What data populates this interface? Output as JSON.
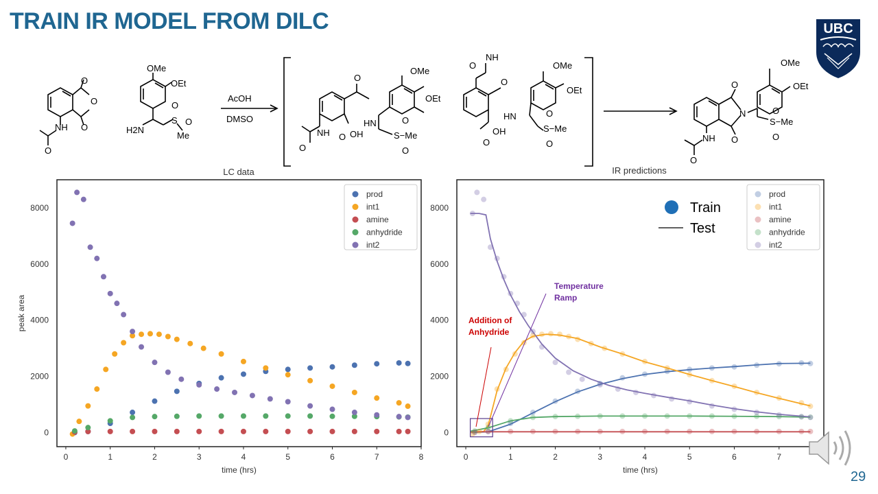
{
  "slide": {
    "title": "TRAIN IR MODEL FROM DILC",
    "page_number": "29",
    "logo_text": "UBC"
  },
  "scheme": {
    "reagents_top": "AcOH",
    "reagents_bottom": "DMSO",
    "labels": {
      "ome": "OMe",
      "oet": "OEt",
      "nh": "NH",
      "h2n": "H2N",
      "hn": "HN",
      "n": "N",
      "me": "Me",
      "s": "S",
      "o": "O",
      "s_me": "S−Me",
      "cooh": "OH"
    }
  },
  "colors": {
    "prod": "#4c72b0",
    "int1": "#f5a623",
    "amine": "#c44e52",
    "anhydride": "#55a868",
    "int2": "#8172b2",
    "title": "#1f6691",
    "annot_red": "#cc0000",
    "annot_purple": "#7030a0"
  },
  "chart_data": [
    {
      "type": "scatter",
      "title": "LC data",
      "xlabel": "time (hrs)",
      "ylabel": "peak area",
      "xlim": [
        -0.2,
        8
      ],
      "ylim": [
        -500,
        9000
      ],
      "xticks": [
        0,
        1,
        2,
        3,
        4,
        5,
        6,
        7,
        8
      ],
      "yticks": [
        0,
        2000,
        4000,
        6000,
        8000
      ],
      "grid": false,
      "legend_position": "top-right",
      "legend": [
        "prod",
        "int1",
        "amine",
        "anhydride",
        "int2"
      ],
      "series": [
        {
          "name": "prod",
          "x": [
            0.2,
            0.5,
            1.0,
            1.5,
            2.0,
            2.5,
            3.0,
            3.5,
            4.0,
            4.5,
            5.0,
            5.5,
            6.0,
            6.5,
            7.0,
            7.5,
            7.7
          ],
          "y": [
            0,
            40,
            330,
            720,
            1120,
            1470,
            1750,
            1950,
            2080,
            2180,
            2250,
            2300,
            2340,
            2400,
            2450,
            2480,
            2460
          ]
        },
        {
          "name": "int1",
          "x": [
            0.15,
            0.3,
            0.5,
            0.7,
            0.9,
            1.1,
            1.3,
            1.5,
            1.7,
            1.9,
            2.1,
            2.3,
            2.5,
            2.8,
            3.1,
            3.5,
            4.0,
            4.5,
            5.0,
            5.5,
            6.0,
            6.5,
            7.0,
            7.5,
            7.7
          ],
          "y": [
            -50,
            400,
            950,
            1550,
            2250,
            2800,
            3200,
            3450,
            3500,
            3520,
            3500,
            3420,
            3320,
            3170,
            3000,
            2800,
            2530,
            2300,
            2060,
            1850,
            1650,
            1430,
            1230,
            1060,
            940
          ]
        },
        {
          "name": "amine",
          "x": [
            0.2,
            0.5,
            1.0,
            1.5,
            2.0,
            2.5,
            3.0,
            3.5,
            4.0,
            4.5,
            5.0,
            5.5,
            6.0,
            6.5,
            7.0,
            7.5,
            7.7
          ],
          "y": [
            20,
            40,
            40,
            40,
            40,
            40,
            40,
            40,
            40,
            40,
            40,
            40,
            40,
            40,
            40,
            40,
            40
          ]
        },
        {
          "name": "anhydride",
          "x": [
            0.2,
            0.5,
            1.0,
            1.5,
            2.0,
            2.5,
            3.0,
            3.5,
            4.0,
            4.5,
            5.0,
            5.5,
            6.0,
            6.5,
            7.0,
            7.5,
            7.7
          ],
          "y": [
            60,
            180,
            420,
            540,
            570,
            580,
            590,
            590,
            590,
            590,
            590,
            590,
            580,
            580,
            570,
            560,
            550
          ]
        },
        {
          "name": "int2",
          "x": [
            0.15,
            0.25,
            0.4,
            0.55,
            0.7,
            0.85,
            1.0,
            1.15,
            1.3,
            1.5,
            1.7,
            2.0,
            2.3,
            2.6,
            3.0,
            3.4,
            3.8,
            4.2,
            4.6,
            5.0,
            5.5,
            6.0,
            6.5,
            7.0,
            7.5,
            7.7
          ],
          "y": [
            7450,
            8550,
            8300,
            6600,
            6200,
            5550,
            4950,
            4600,
            4200,
            3600,
            3050,
            2500,
            2150,
            1900,
            1700,
            1550,
            1430,
            1320,
            1200,
            1100,
            950,
            830,
            720,
            630,
            570,
            540
          ]
        }
      ]
    },
    {
      "type": "scatter",
      "title": "IR predictions",
      "xlabel": "time (hrs)",
      "xlim": [
        -0.2,
        8
      ],
      "ylim": [
        -500,
        9000
      ],
      "xticks": [
        0,
        1,
        2,
        3,
        4,
        5,
        6,
        7
      ],
      "yticks": [
        0,
        2000,
        4000,
        6000,
        8000
      ],
      "grid": false,
      "legend_position": "top-right",
      "legend": [
        "prod",
        "int1",
        "amine",
        "anhydride",
        "int2"
      ],
      "style_legend": {
        "train": "Train",
        "test": "Test"
      },
      "annotations": [
        {
          "text_line1": "Addition of",
          "text_line2": "Anhydride",
          "color": "red"
        },
        {
          "text_line1": "Temperature",
          "text_line2": "Ramp",
          "color": "purple"
        }
      ],
      "series": [
        {
          "name": "prod",
          "x": [
            0.2,
            0.5,
            1.0,
            1.5,
            2.0,
            2.5,
            3.0,
            3.5,
            4.0,
            4.5,
            5.0,
            5.5,
            6.0,
            6.5,
            7.0,
            7.5,
            7.7
          ],
          "y": [
            0,
            40,
            330,
            720,
            1120,
            1470,
            1750,
            1950,
            2080,
            2180,
            2250,
            2300,
            2340,
            2400,
            2450,
            2480,
            2460
          ]
        },
        {
          "name": "int1",
          "x": [
            0.15,
            0.3,
            0.5,
            0.7,
            0.9,
            1.1,
            1.3,
            1.5,
            1.7,
            1.9,
            2.1,
            2.3,
            2.5,
            2.8,
            3.1,
            3.5,
            4.0,
            4.5,
            5.0,
            5.5,
            6.0,
            6.5,
            7.0,
            7.5,
            7.7
          ],
          "y": [
            -50,
            40,
            300,
            1550,
            2250,
            2800,
            3200,
            3450,
            3500,
            3520,
            3500,
            3420,
            3320,
            3170,
            3000,
            2800,
            2530,
            2300,
            2060,
            1850,
            1650,
            1430,
            1230,
            1060,
            940
          ]
        },
        {
          "name": "amine",
          "x": [
            0.2,
            0.5,
            1.0,
            1.5,
            2.0,
            2.5,
            3.0,
            3.5,
            4.0,
            4.5,
            5.0,
            5.5,
            6.0,
            6.5,
            7.0,
            7.5,
            7.7
          ],
          "y": [
            20,
            40,
            40,
            40,
            40,
            40,
            40,
            40,
            40,
            40,
            40,
            40,
            40,
            40,
            40,
            40,
            40
          ]
        },
        {
          "name": "anhydride",
          "x": [
            0.2,
            0.5,
            1.0,
            1.5,
            2.0,
            2.5,
            3.0,
            3.5,
            4.0,
            4.5,
            5.0,
            5.5,
            6.0,
            6.5,
            7.0,
            7.5,
            7.7
          ],
          "y": [
            60,
            180,
            420,
            540,
            570,
            580,
            590,
            590,
            590,
            590,
            590,
            590,
            580,
            580,
            570,
            560,
            550
          ]
        },
        {
          "name": "int2",
          "x": [
            0.15,
            0.25,
            0.4,
            0.55,
            0.7,
            0.85,
            1.0,
            1.15,
            1.3,
            1.5,
            1.7,
            2.0,
            2.3,
            2.6,
            3.0,
            3.4,
            3.8,
            4.2,
            4.6,
            5.0,
            5.5,
            6.0,
            6.5,
            7.0,
            7.5,
            7.7
          ],
          "y": [
            7800,
            8550,
            8300,
            6600,
            6200,
            5550,
            4950,
            4600,
            4200,
            3600,
            3050,
            2500,
            2150,
            1900,
            1700,
            1550,
            1430,
            1320,
            1200,
            1100,
            950,
            830,
            720,
            630,
            570,
            540
          ]
        }
      ],
      "test_series": [
        {
          "name": "prod",
          "x": [
            0.1,
            0.5,
            1.0,
            1.5,
            2.0,
            2.5,
            3.0,
            3.5,
            4.0,
            4.5,
            5.0,
            5.5,
            6.0,
            6.5,
            7.0,
            7.7
          ],
          "y": [
            0,
            30,
            300,
            700,
            1100,
            1450,
            1720,
            1920,
            2070,
            2170,
            2240,
            2300,
            2350,
            2410,
            2460,
            2470
          ]
        },
        {
          "name": "int1",
          "x": [
            0.1,
            0.4,
            0.5,
            0.7,
            0.9,
            1.1,
            1.3,
            1.5,
            1.8,
            2.1,
            2.5,
            3.0,
            3.5,
            4.0,
            4.5,
            5.0,
            5.5,
            6.0,
            6.5,
            7.0,
            7.7
          ],
          "y": [
            20,
            40,
            250,
            1500,
            2300,
            2850,
            3250,
            3430,
            3500,
            3470,
            3350,
            3050,
            2800,
            2520,
            2300,
            2070,
            1850,
            1640,
            1420,
            1220,
            950
          ]
        },
        {
          "name": "amine",
          "x": [
            0.1,
            7.7
          ],
          "y": [
            30,
            30
          ]
        },
        {
          "name": "anhydride",
          "x": [
            0.1,
            0.5,
            1.0,
            1.5,
            2.0,
            3.0,
            4.0,
            5.0,
            6.0,
            7.0,
            7.7
          ],
          "y": [
            50,
            170,
            420,
            540,
            570,
            590,
            590,
            590,
            580,
            570,
            550
          ]
        },
        {
          "name": "int2",
          "x": [
            0.1,
            0.3,
            0.45,
            0.55,
            0.7,
            0.85,
            1.0,
            1.2,
            1.4,
            1.7,
            2.0,
            2.4,
            2.8,
            3.2,
            3.6,
            4.0,
            4.5,
            5.0,
            5.5,
            6.0,
            6.5,
            7.0,
            7.7
          ],
          "y": [
            7800,
            7800,
            7750,
            6900,
            6100,
            5450,
            4900,
            4300,
            3800,
            3150,
            2650,
            2200,
            1900,
            1680,
            1520,
            1400,
            1260,
            1130,
            980,
            850,
            740,
            650,
            560
          ]
        }
      ]
    }
  ]
}
